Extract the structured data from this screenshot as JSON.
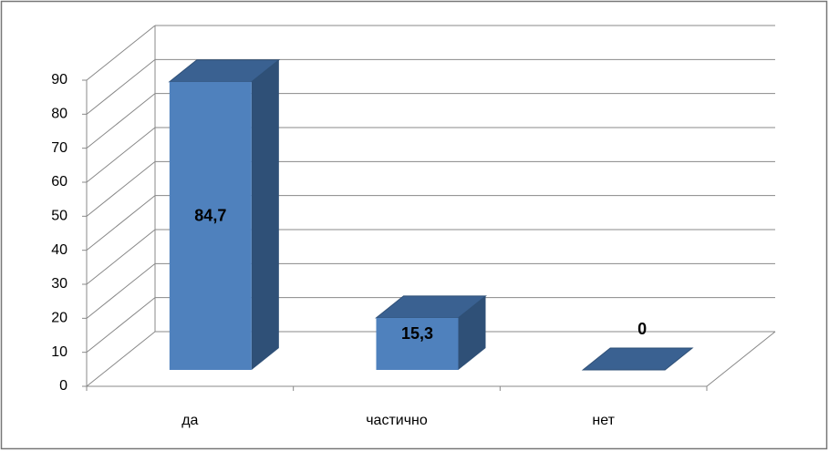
{
  "chart_data": {
    "type": "bar3d",
    "categories": [
      "да",
      "частично",
      "нет"
    ],
    "values": [
      84.7,
      15.3,
      0
    ],
    "value_labels": [
      "84,7",
      "15,3",
      "0"
    ],
    "color": "#4f81bd",
    "ylim": [
      0,
      90
    ],
    "yticks": [
      0,
      10,
      20,
      30,
      40,
      50,
      60,
      70,
      80,
      90
    ],
    "grid": true
  }
}
